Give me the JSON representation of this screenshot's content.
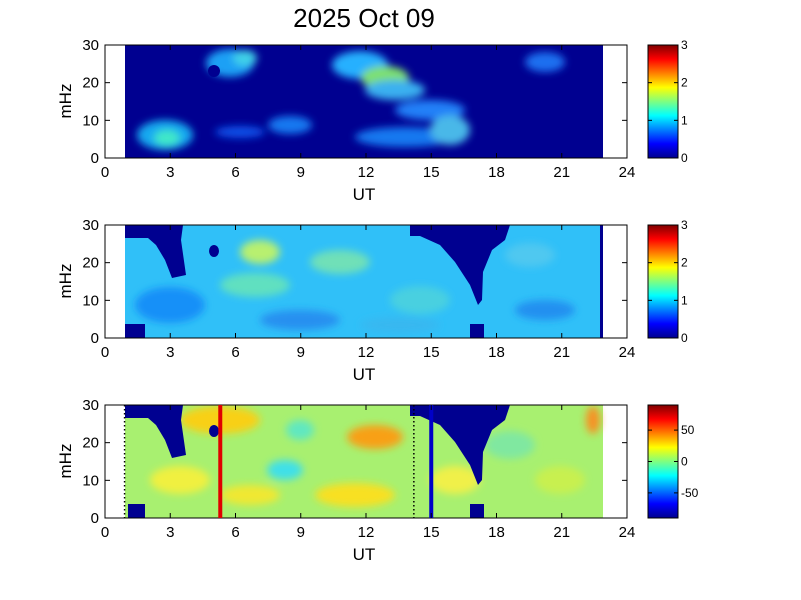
{
  "title": "2025 Oct 09",
  "colors": {
    "frame": "#000000",
    "background": "#000080",
    "red_line": "#e00000",
    "blue_line": "#0000c8",
    "dotted_line": "#000000"
  },
  "chart_data": [
    {
      "type": "heatmap",
      "xlabel": "UT",
      "ylabel": "mHz",
      "xlim": [
        0,
        24
      ],
      "ylim": [
        0,
        30
      ],
      "xticks": [
        "0",
        "3",
        "6",
        "9",
        "12",
        "15",
        "18",
        "21",
        "24"
      ],
      "yticks": [
        "0",
        "10",
        "20",
        "30"
      ],
      "data_x_range": [
        1.0,
        23.0
      ],
      "colorbar": {
        "min": 0,
        "max": 3,
        "ticks": [
          "0",
          "1",
          "2",
          "3"
        ]
      },
      "grid": false
    },
    {
      "type": "heatmap",
      "xlabel": "UT",
      "ylabel": "mHz",
      "xlim": [
        0,
        24
      ],
      "ylim": [
        0,
        30
      ],
      "xticks": [
        "0",
        "3",
        "6",
        "9",
        "12",
        "15",
        "18",
        "21",
        "24"
      ],
      "yticks": [
        "0",
        "10",
        "20",
        "30"
      ],
      "data_x_range": [
        1.0,
        23.0
      ],
      "colorbar": {
        "min": 0,
        "max": 3,
        "ticks": [
          "0",
          "1",
          "2",
          "3"
        ]
      },
      "grid": false
    },
    {
      "type": "heatmap",
      "xlabel": "UT",
      "ylabel": "mHz",
      "xlim": [
        0,
        24
      ],
      "ylim": [
        0,
        30
      ],
      "xticks": [
        "0",
        "3",
        "6",
        "9",
        "12",
        "15",
        "18",
        "21",
        "24"
      ],
      "yticks": [
        "0",
        "10",
        "20",
        "30"
      ],
      "data_x_range": [
        1.0,
        23.0
      ],
      "colorbar": {
        "min": -90,
        "max": 90,
        "ticks": [
          "50",
          "0",
          "-50"
        ]
      },
      "markers": [
        {
          "kind": "dotted",
          "x": 0.9
        },
        {
          "kind": "solid",
          "color": "red",
          "x": 5.3
        },
        {
          "kind": "dotted",
          "x": 14.2
        },
        {
          "kind": "solid",
          "color": "blue",
          "x": 15.0
        }
      ],
      "grid": false
    }
  ]
}
